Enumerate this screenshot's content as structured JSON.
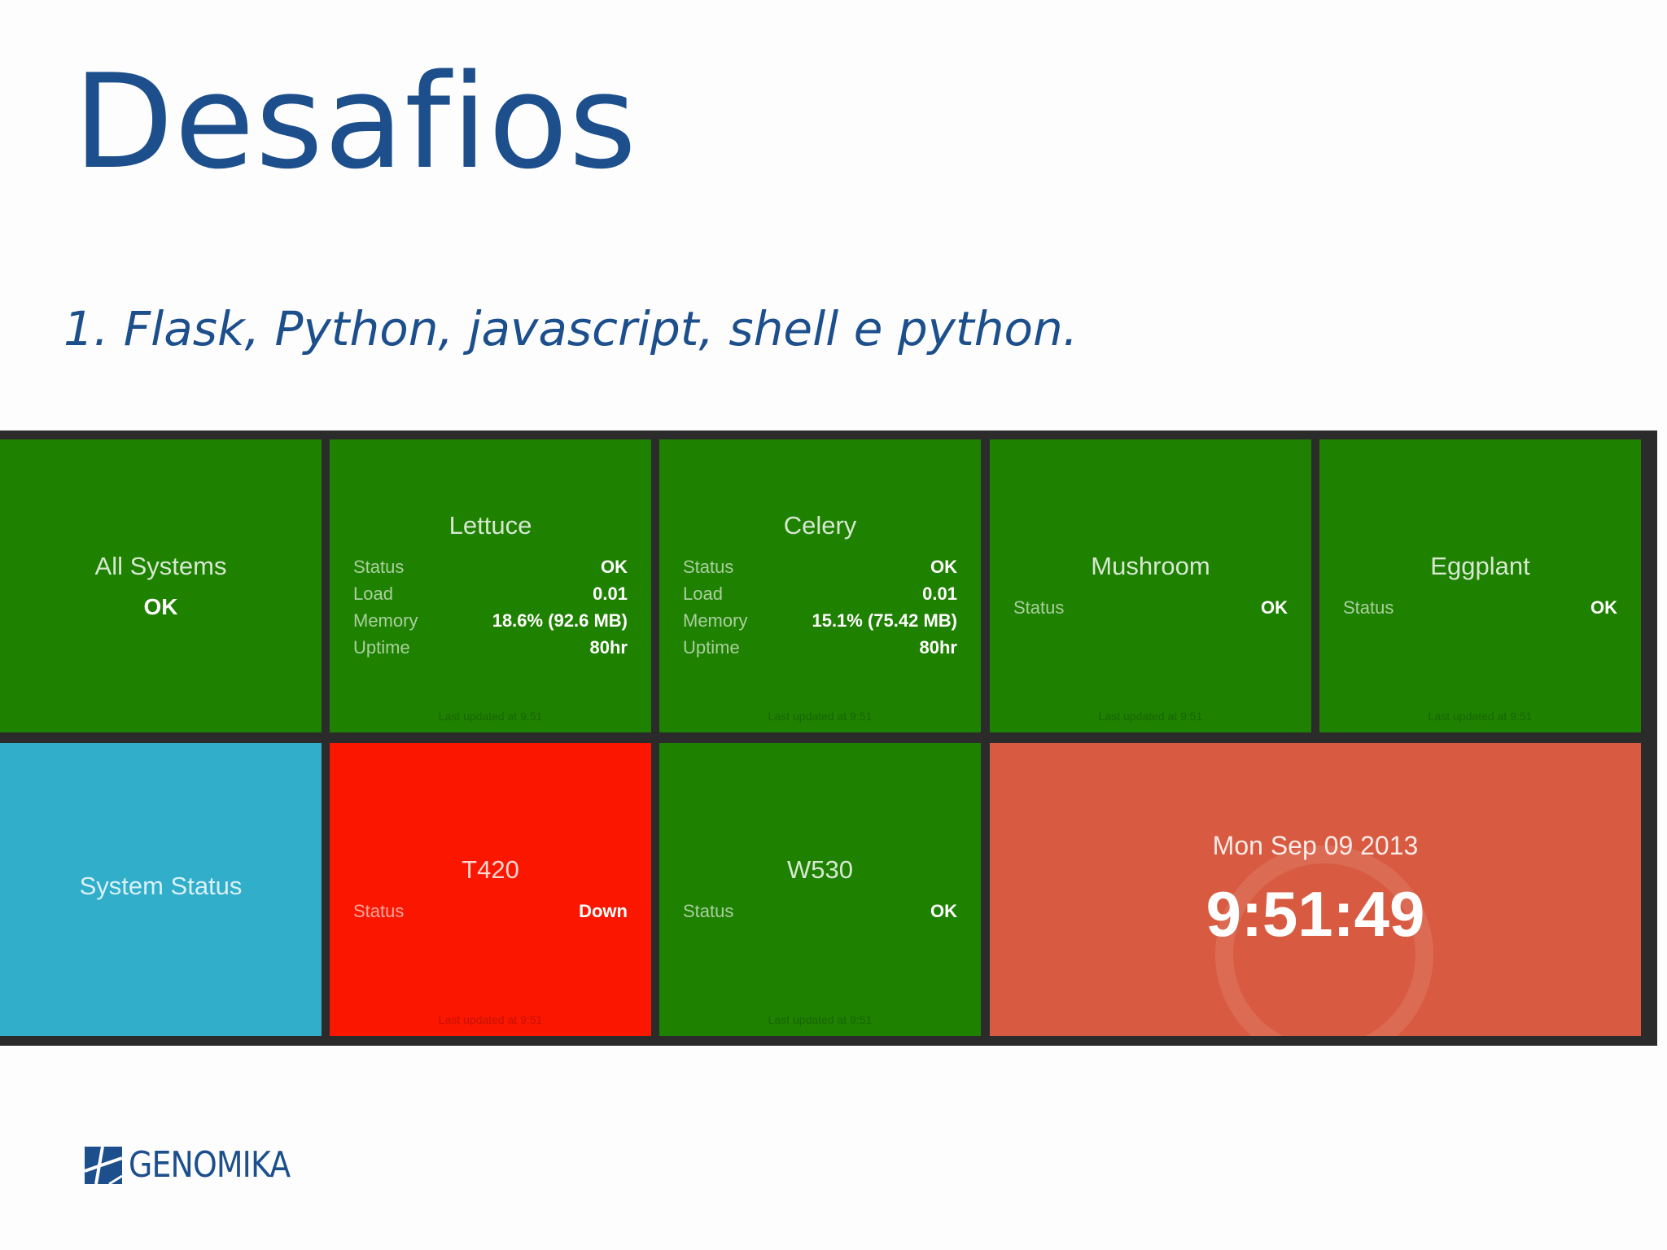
{
  "slide": {
    "title": "Desafios",
    "bullet": "1. Flask, Python,  javascript, shell e python."
  },
  "dashboard": {
    "all_systems": {
      "title": "All Systems",
      "status": "OK",
      "color": "#1e8100"
    },
    "lettuce": {
      "title": "Lettuce",
      "rows": [
        {
          "label": "Status",
          "value": "OK"
        },
        {
          "label": "Load",
          "value": "0.01"
        },
        {
          "label": "Memory",
          "value": "18.6% (92.6 MB)"
        },
        {
          "label": "Uptime",
          "value": "80hr"
        }
      ],
      "updated": "Last updated at 9:51",
      "color": "#1e8100"
    },
    "celery": {
      "title": "Celery",
      "rows": [
        {
          "label": "Status",
          "value": "OK"
        },
        {
          "label": "Load",
          "value": "0.01"
        },
        {
          "label": "Memory",
          "value": "15.1% (75.42 MB)"
        },
        {
          "label": "Uptime",
          "value": "80hr"
        }
      ],
      "updated": "Last updated at 9:51",
      "color": "#1e8100"
    },
    "mushroom": {
      "title": "Mushroom",
      "rows": [
        {
          "label": "Status",
          "value": "OK"
        }
      ],
      "updated": "Last updated at 9:51",
      "color": "#1e8100"
    },
    "eggplant": {
      "title": "Eggplant",
      "rows": [
        {
          "label": "Status",
          "value": "OK"
        }
      ],
      "updated": "Last updated at 9:51",
      "color": "#1e8100"
    },
    "system_status": {
      "title": "System Status",
      "color": "#30aeca"
    },
    "t420": {
      "title": "T420",
      "rows": [
        {
          "label": "Status",
          "value": "Down"
        }
      ],
      "updated": "Last updated at 9:51",
      "color": "#fb1600"
    },
    "w530": {
      "title": "W530",
      "rows": [
        {
          "label": "Status",
          "value": "OK"
        }
      ],
      "updated": "Last updated at 9:51",
      "color": "#1e8100"
    },
    "clock": {
      "date": "Mon Sep 09 2013",
      "time": "9:51:49",
      "color": "#d85b41"
    }
  },
  "logo": {
    "text": "GENOMIKA",
    "icon": "genomika-logo-icon"
  }
}
